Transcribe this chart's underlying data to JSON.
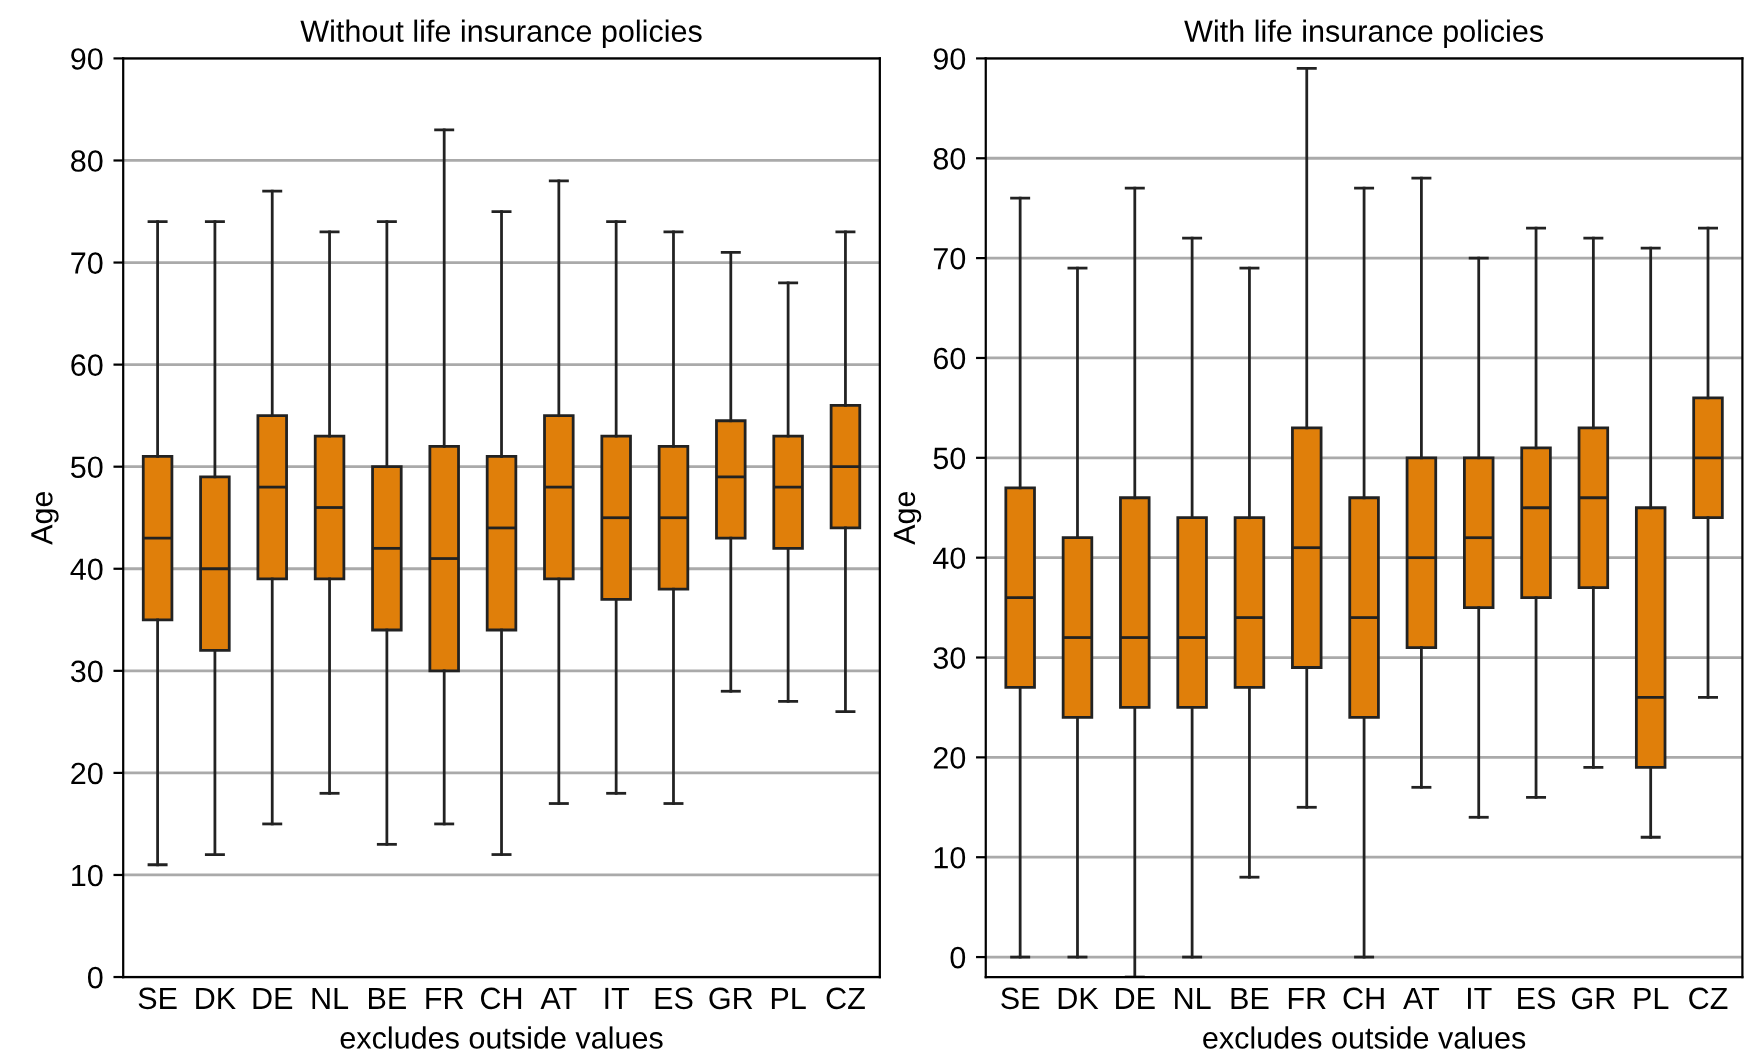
{
  "chart_data": [
    {
      "type": "box",
      "title": "Without life insurance policies",
      "xlabel": "excludes outside values",
      "ylabel": "Age",
      "color": "#e07f0a",
      "categories": [
        "SE",
        "DK",
        "DE",
        "NL",
        "BE",
        "FR",
        "CH",
        "AT",
        "IT",
        "ES",
        "GR",
        "PL",
        "CZ"
      ],
      "boxes": [
        {
          "low": 11,
          "q1": 35,
          "median": 43,
          "q3": 51,
          "high": 74
        },
        {
          "low": 12,
          "q1": 32,
          "median": 40,
          "q3": 49,
          "high": 74
        },
        {
          "low": 15,
          "q1": 39,
          "median": 48,
          "q3": 55,
          "high": 77
        },
        {
          "low": 18,
          "q1": 39,
          "median": 46,
          "q3": 53,
          "high": 73
        },
        {
          "low": 13,
          "q1": 34,
          "median": 42,
          "q3": 50,
          "high": 74
        },
        {
          "low": 15,
          "q1": 30,
          "median": 41,
          "q3": 52,
          "high": 83
        },
        {
          "low": 12,
          "q1": 34,
          "median": 44,
          "q3": 51,
          "high": 75
        },
        {
          "low": 17,
          "q1": 39,
          "median": 48,
          "q3": 55,
          "high": 78
        },
        {
          "low": 18,
          "q1": 37,
          "median": 45,
          "q3": 53,
          "high": 74
        },
        {
          "low": 17,
          "q1": 38,
          "median": 45,
          "q3": 52,
          "high": 73
        },
        {
          "low": 28,
          "q1": 43,
          "median": 49,
          "q3": 54.5,
          "high": 71
        },
        {
          "low": 27,
          "q1": 42,
          "median": 48,
          "q3": 53,
          "high": 68
        },
        {
          "low": 26,
          "q1": 44,
          "median": 50,
          "q3": 56,
          "high": 73
        }
      ],
      "ylim": [
        0,
        90
      ],
      "yticks": [
        0,
        10,
        20,
        30,
        40,
        50,
        60,
        70,
        80,
        90
      ],
      "grid": "y"
    },
    {
      "type": "box",
      "title": "With life insurance policies",
      "xlabel": "excludes outside values",
      "ylabel": "Age",
      "color": "#e07f0a",
      "categories": [
        "SE",
        "DK",
        "DE",
        "NL",
        "BE",
        "FR",
        "CH",
        "AT",
        "IT",
        "ES",
        "GR",
        "PL",
        "CZ"
      ],
      "boxes": [
        {
          "low": 0,
          "q1": 27,
          "median": 36,
          "q3": 47,
          "high": 76
        },
        {
          "low": 0,
          "q1": 24,
          "median": 32,
          "q3": 42,
          "high": 69
        },
        {
          "low": -2,
          "q1": 25,
          "median": 32,
          "q3": 46,
          "high": 77
        },
        {
          "low": 0,
          "q1": 25,
          "median": 32,
          "q3": 44,
          "high": 72
        },
        {
          "low": 8,
          "q1": 27,
          "median": 34,
          "q3": 44,
          "high": 69
        },
        {
          "low": 15,
          "q1": 29,
          "median": 41,
          "q3": 53,
          "high": 89
        },
        {
          "low": 0,
          "q1": 24,
          "median": 34,
          "q3": 46,
          "high": 77
        },
        {
          "low": 17,
          "q1": 31,
          "median": 40,
          "q3": 50,
          "high": 78
        },
        {
          "low": 14,
          "q1": 35,
          "median": 42,
          "q3": 50,
          "high": 70
        },
        {
          "low": 16,
          "q1": 36,
          "median": 45,
          "q3": 51,
          "high": 73
        },
        {
          "low": 19,
          "q1": 37,
          "median": 46,
          "q3": 53,
          "high": 72
        },
        {
          "low": 12,
          "q1": 19,
          "median": 26,
          "q3": 45,
          "high": 71
        },
        {
          "low": 26,
          "q1": 44,
          "median": 50,
          "q3": 56,
          "high": 73
        }
      ],
      "ylim": [
        -2,
        90
      ],
      "yticks": [
        0,
        10,
        20,
        30,
        40,
        50,
        60,
        70,
        80,
        90
      ],
      "grid": "y"
    }
  ]
}
